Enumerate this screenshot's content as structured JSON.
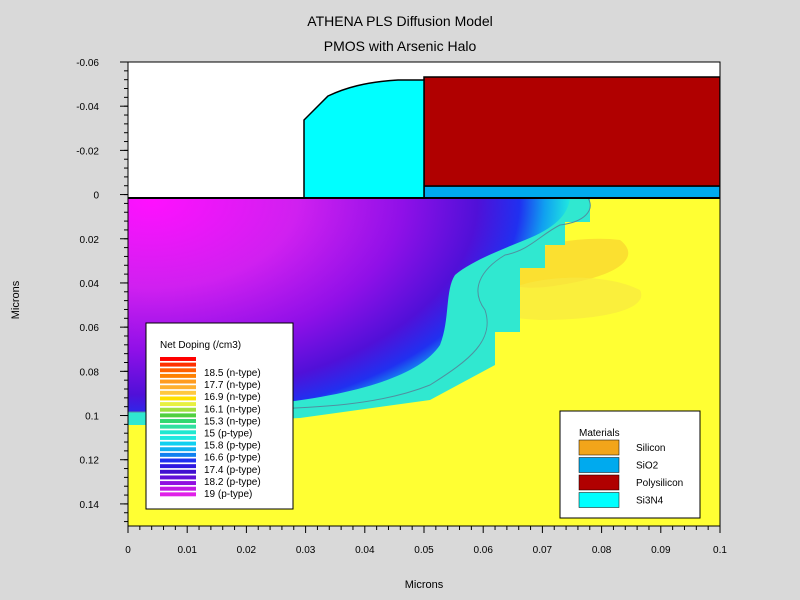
{
  "title": "ATHENA PLS Diffusion Model",
  "subtitle": "PMOS  with Arsenic Halo",
  "x_axis": {
    "label": "Microns",
    "ticks": [
      "0",
      "0.01",
      "0.02",
      "0.03",
      "0.04",
      "0.05",
      "0.06",
      "0.07",
      "0.08",
      "0.09",
      "0.1"
    ],
    "range": [
      0,
      0.1
    ]
  },
  "y_axis": {
    "label": "Microns",
    "ticks": [
      "-0.06",
      "-0.04",
      "-0.02",
      "0",
      "0.02",
      "0.04",
      "0.06",
      "0.08",
      "0.1",
      "0.12",
      "0.14"
    ],
    "range": [
      -0.06,
      0.15
    ]
  },
  "doping_legend": {
    "title": "Net Doping (/cm3)",
    "entries": [
      {
        "label": "18.5 (n-type)",
        "color": "#ff8c00"
      },
      {
        "label": "17.7 (n-type)",
        "color": "#ffb030"
      },
      {
        "label": "16.9 (n-type)",
        "color": "#ffe000"
      },
      {
        "label": "16.1 (n-type)",
        "color": "#50d040"
      },
      {
        "label": "15.3 (n-type)",
        "color": "#30e0a0"
      },
      {
        "label": "15 (p-type)",
        "color": "#20e8e0"
      },
      {
        "label": "15.8 (p-type)",
        "color": "#10b0f0"
      },
      {
        "label": "16.6 (p-type)",
        "color": "#2030f0"
      },
      {
        "label": "17.4 (p-type)",
        "color": "#4010d0"
      },
      {
        "label": "18.2 (p-type)",
        "color": "#9010e0"
      },
      {
        "label": "19 (p-type)",
        "color": "#e020e8"
      }
    ],
    "swatch_colors": [
      "#ff0000",
      "#ff3000",
      "#ff6000",
      "#ff8000",
      "#ff9c20",
      "#ffb030",
      "#ffc840",
      "#ffe000",
      "#e8f040",
      "#a0e040",
      "#50d040",
      "#30d870",
      "#30e0a0",
      "#20e8d0",
      "#20e8e0",
      "#10d0f0",
      "#10b0f0",
      "#1080f0",
      "#2030f0",
      "#3018e0",
      "#4010d0",
      "#6010d8",
      "#9010e0",
      "#c018e4",
      "#e020e8"
    ]
  },
  "materials_legend": {
    "title": "Materials",
    "entries": [
      {
        "label": "Silicon",
        "color": "#f2a51a"
      },
      {
        "label": "SiO2",
        "color": "#00aaee"
      },
      {
        "label": "Polysilicon",
        "color": "#b00000"
      },
      {
        "label": "Si3N4",
        "color": "#00ffff"
      }
    ]
  },
  "colors": {
    "background": "#d9d9d9",
    "substrate": "#ffff33",
    "polysilicon": "#b00000",
    "sio2": "#00aaee",
    "si3n4": "#00ffff",
    "halo": "#fbe030"
  }
}
